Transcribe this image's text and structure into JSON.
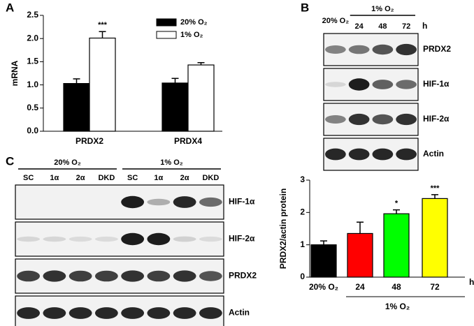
{
  "chart_data": [
    {
      "type": "bar",
      "panel_label": "A",
      "y_label": "mRNA",
      "categories": [
        "PRDX2",
        "PRDX4"
      ],
      "series": [
        {
          "name": "20% O₂",
          "color": "#000000",
          "values": [
            1.03,
            1.04
          ],
          "errors": [
            0.1,
            0.1
          ],
          "annotations": [
            null,
            null
          ]
        },
        {
          "name": "1% O₂",
          "color": "#ffffff",
          "values": [
            2.01,
            1.43
          ],
          "errors": [
            0.14,
            0.05
          ],
          "annotations": [
            "***",
            null
          ]
        }
      ],
      "ylim": [
        0,
        2.5
      ],
      "yticks": [
        {
          "value": 0,
          "label": "0.0"
        },
        {
          "value": 0.5,
          "label": "0.5"
        },
        {
          "value": 1,
          "label": "1.0"
        },
        {
          "value": 1.5,
          "label": "1.5"
        },
        {
          "value": 2,
          "label": "2.0"
        },
        {
          "value": 2.5,
          "label": "2.5"
        }
      ],
      "legend": "top-right"
    },
    {
      "type": "bar",
      "y_label": "PRDX2/actin protein",
      "categories": [
        "20% O₂",
        "24",
        "48",
        "72"
      ],
      "x_unit": "h",
      "group_label": "1% O₂",
      "values": [
        1.0,
        1.35,
        1.96,
        2.43
      ],
      "errors": [
        0.12,
        0.35,
        0.12,
        0.12
      ],
      "colors": [
        "#000000",
        "#ff0000",
        "#00ff00",
        "#ffff00"
      ],
      "annotations": [
        null,
        null,
        "*",
        "***"
      ],
      "ylim": [
        0,
        3
      ],
      "yticks": [
        0,
        1,
        2,
        3
      ]
    }
  ],
  "blots": [
    {
      "panel_label": "B",
      "groups": [
        {
          "label": "20% O₂",
          "lanes": []
        },
        {
          "label": "1% O₂",
          "lanes": [
            "24",
            "48",
            "72"
          ]
        }
      ],
      "unit": "h",
      "rows": [
        "PRDX2",
        "HIF-1α",
        "HIF-2α",
        "Actin"
      ]
    },
    {
      "panel_label": "C",
      "groups": [
        {
          "label": "20% O₂",
          "lanes": [
            "SC",
            "1α",
            "2α",
            "DKD"
          ]
        },
        {
          "label": "1% O₂",
          "lanes": [
            "SC",
            "1α",
            "2α",
            "DKD"
          ]
        }
      ],
      "rows": [
        "HIF-1α",
        "HIF-2α",
        "PRDX2",
        "Actin"
      ]
    }
  ]
}
